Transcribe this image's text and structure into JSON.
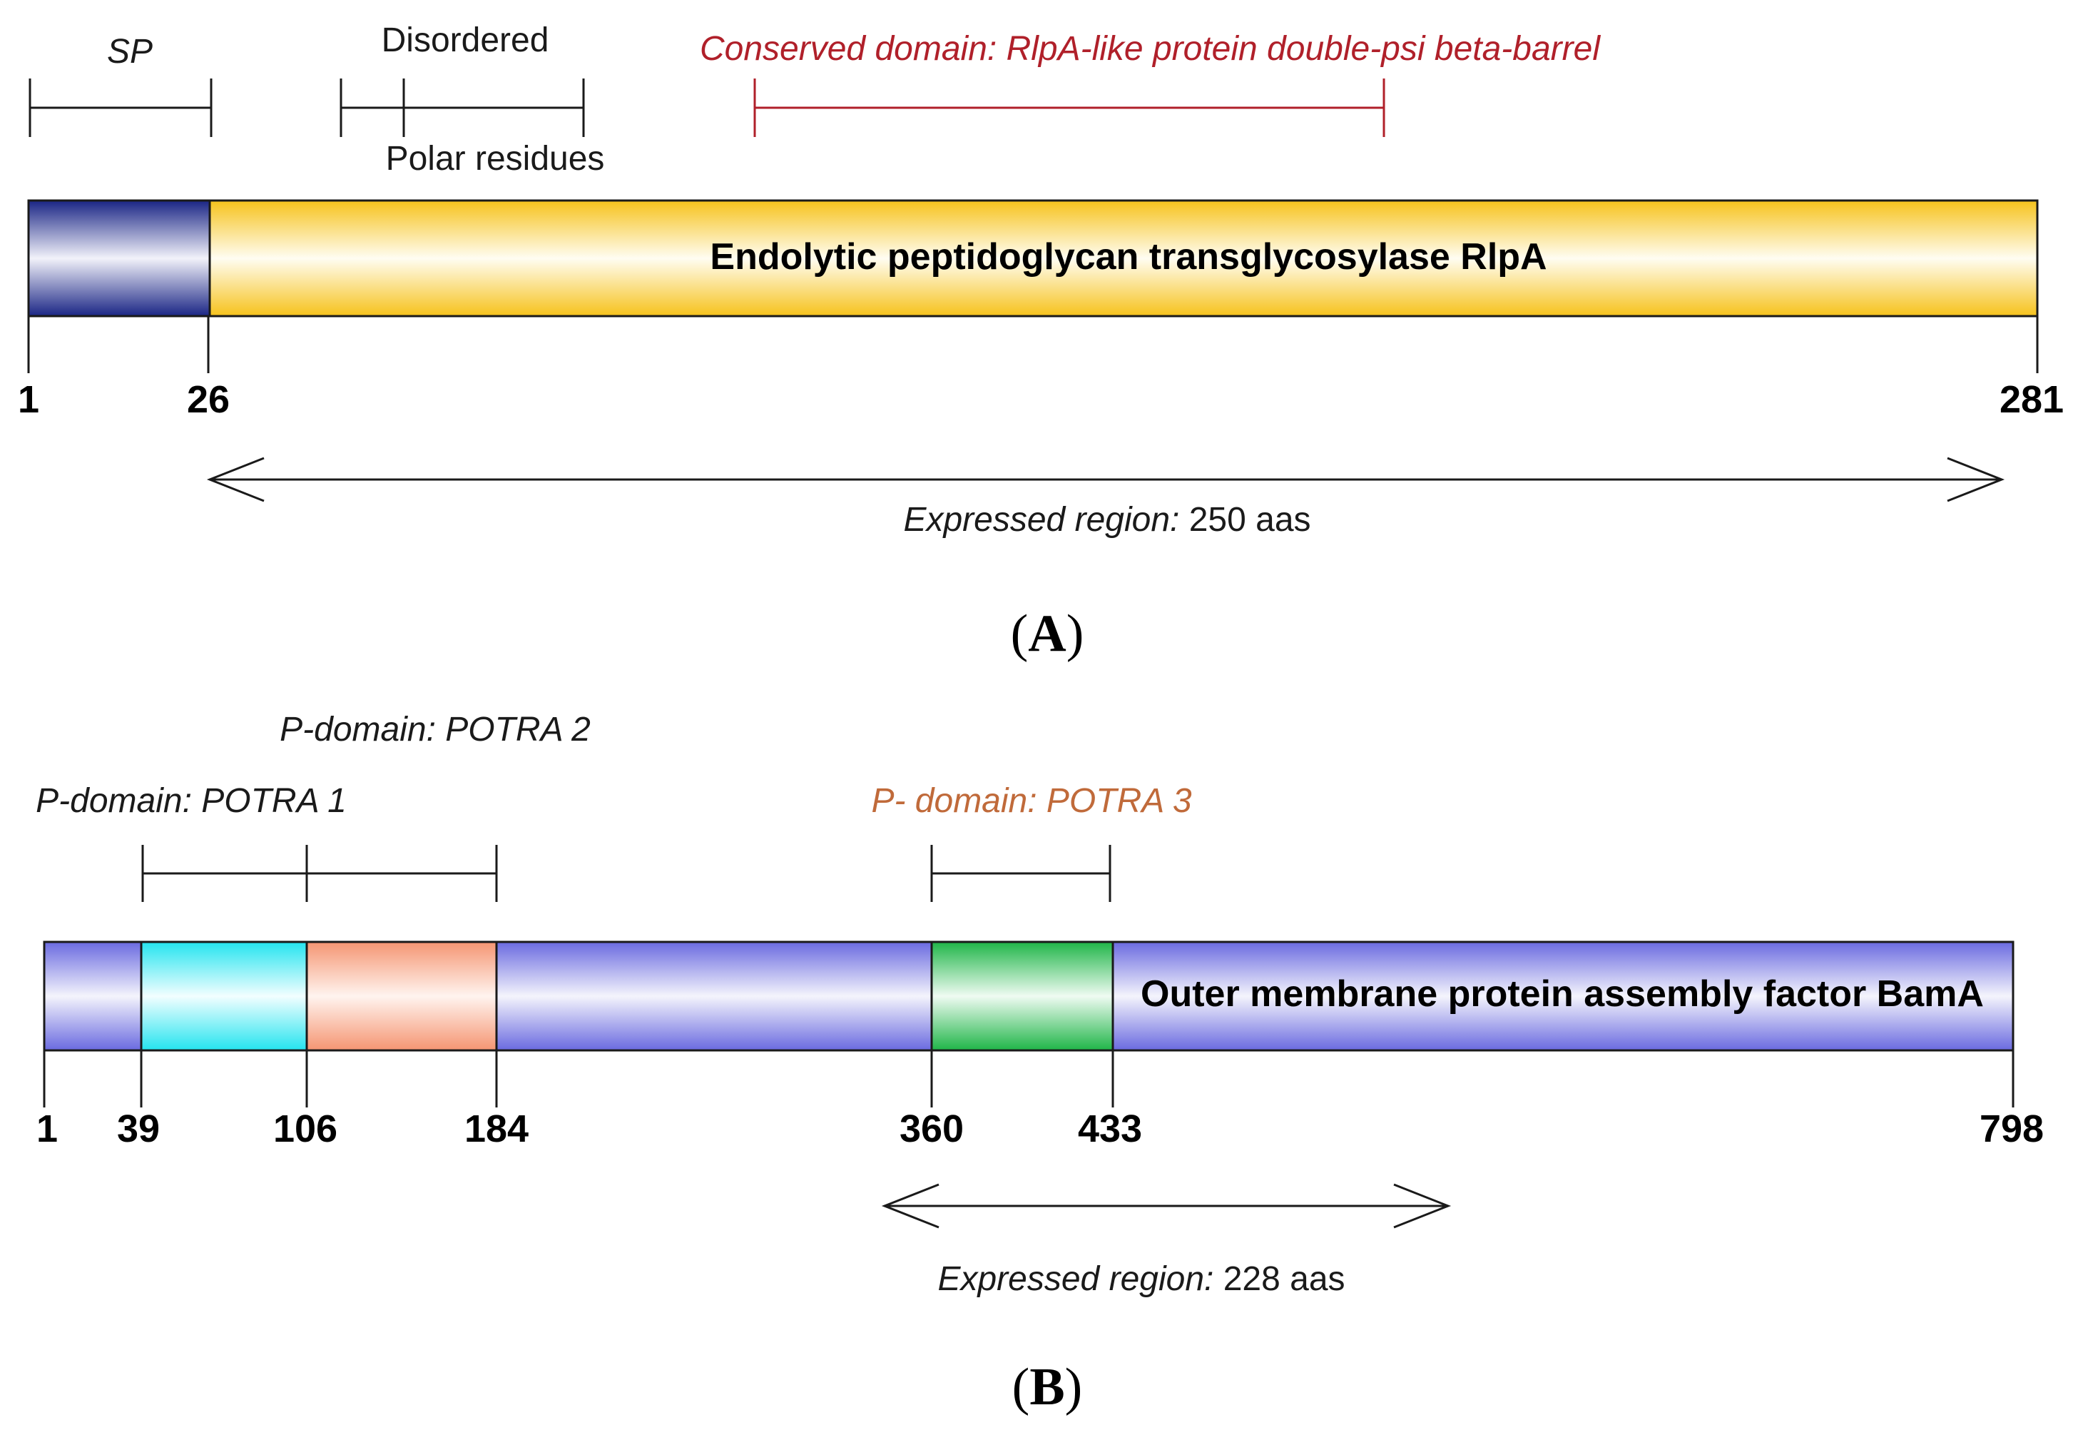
{
  "panel_a": {
    "label_open": "(",
    "label_letter": "A",
    "label_close": ")",
    "protein_name": "Endolytic peptidoglycan transglycosylase RlpA",
    "annotations": {
      "sp": "SP",
      "disordered": "Disordered",
      "polar": "Polar residues",
      "conserved": "Conserved domain: RlpA-like protein double-psi beta-barrel"
    },
    "ticks": [
      "1",
      "26",
      "281"
    ],
    "expressed": {
      "label": "Expressed region:",
      "value": "250 aas"
    }
  },
  "panel_b": {
    "label_open": "(",
    "label_letter": "B",
    "label_close": ")",
    "protein_name": "Outer membrane protein assembly factor BamA",
    "annotations": {
      "potra1": "P-domain: POTRA 1",
      "potra2": "P-domain: POTRA 2",
      "potra3": "P- domain: POTRA 3"
    },
    "ticks": [
      "1",
      "39",
      "106",
      "184",
      "360",
      "433",
      "798"
    ],
    "expressed": {
      "label": "Expressed region:",
      "value": "228 aas"
    }
  },
  "colors": {
    "signal_peptide": "#1c2a8c",
    "rlpa_body": "#f5c11a",
    "bama_body": "#6e6ee0",
    "potra1": "#2ee6f0",
    "potra2": "#f59a78",
    "potra3": "#22b84a",
    "conserved_line": "#b0202a"
  }
}
